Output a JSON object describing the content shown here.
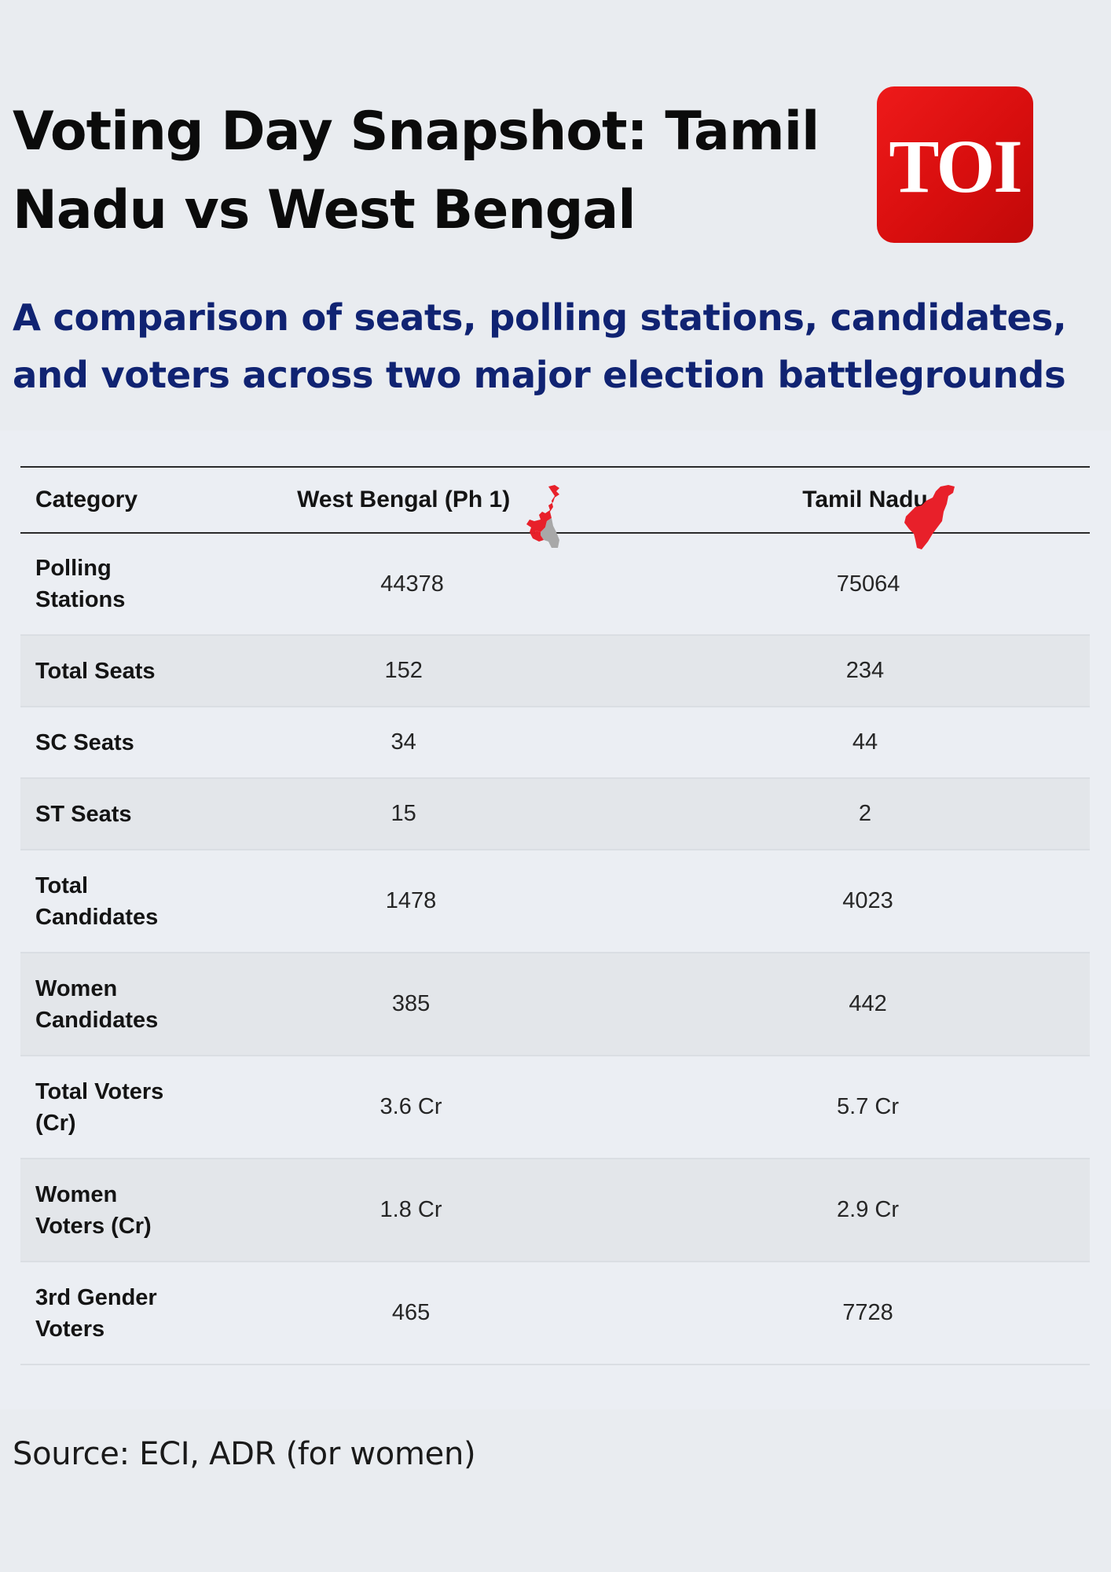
{
  "header": {
    "title": "Voting Day Snapshot: Tamil Nadu vs West Bengal",
    "logo_text": "TOI",
    "subtitle": "A comparison of seats, polling stations, candidates, and voters across two major election battlegrounds"
  },
  "table": {
    "columns": [
      "Category",
      "West Bengal (Ph 1)",
      "Tamil Nadu"
    ],
    "rows": [
      {
        "category": "Polling Stations",
        "west_bengal": "44378",
        "tamil_nadu": "75064"
      },
      {
        "category": "Total Seats",
        "west_bengal": "152",
        "tamil_nadu": "234"
      },
      {
        "category": "SC Seats",
        "west_bengal": "34",
        "tamil_nadu": "44"
      },
      {
        "category": "ST Seats",
        "west_bengal": "15",
        "tamil_nadu": "2"
      },
      {
        "category": "Total Candidates",
        "west_bengal": "1478",
        "tamil_nadu": "4023"
      },
      {
        "category": "Women Candidates",
        "west_bengal": "385",
        "tamil_nadu": "442"
      },
      {
        "category": "Total Voters (Cr)",
        "west_bengal": "3.6 Cr",
        "tamil_nadu": "5.7 Cr"
      },
      {
        "category": "Women Voters (Cr)",
        "west_bengal": "1.8 Cr",
        "tamil_nadu": "2.9 Cr"
      },
      {
        "category": "3rd Gender Voters",
        "west_bengal": "465",
        "tamil_nadu": "7728"
      }
    ]
  },
  "source": "Source: ECI, ADR (for women)",
  "colors": {
    "background": "#e9ecf0",
    "subtitle": "#102372",
    "logo": "#e01010",
    "map_red": "#e8202a",
    "map_grey": "#a8a8a8"
  },
  "icons": [
    "toi-logo",
    "west-bengal-map-icon",
    "tamil-nadu-map-icon"
  ]
}
